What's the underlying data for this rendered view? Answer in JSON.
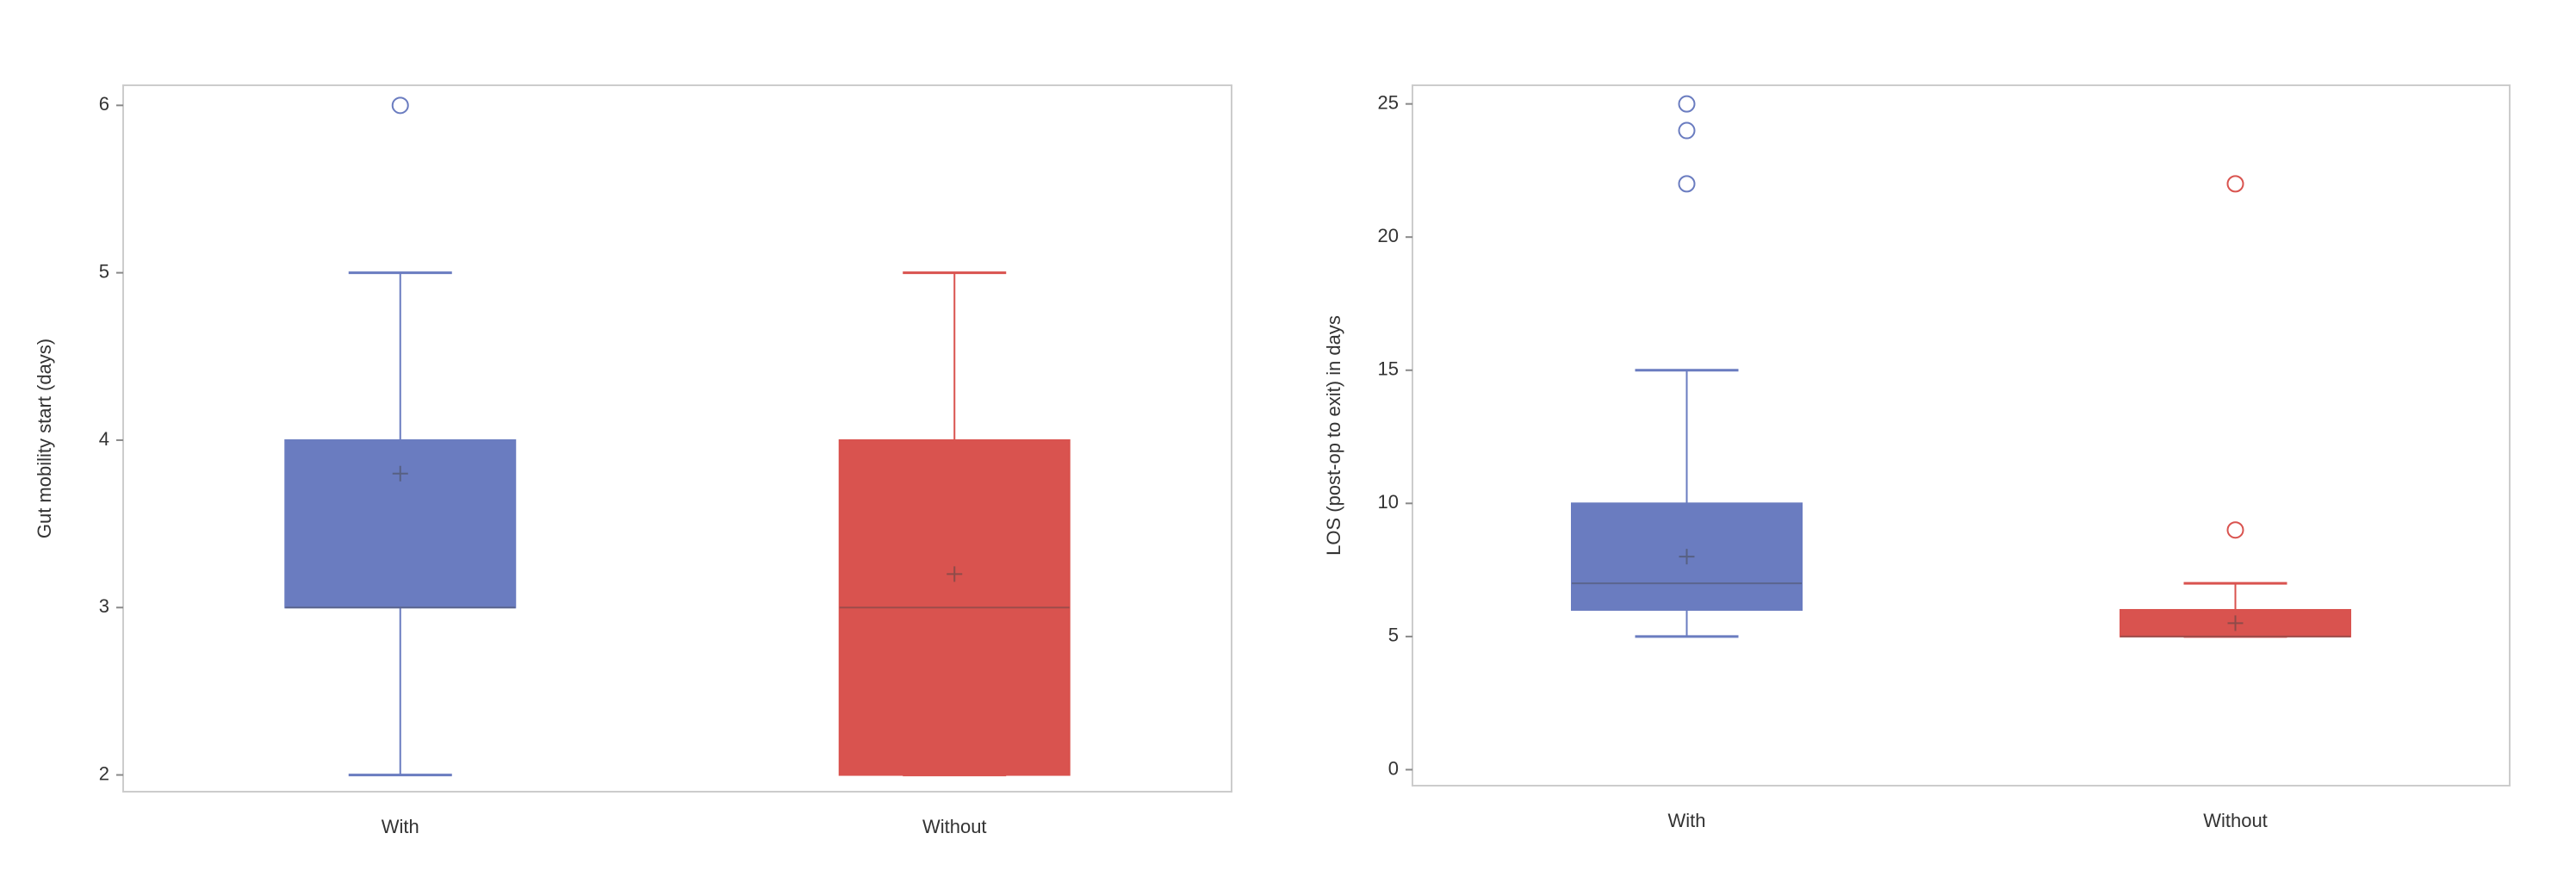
{
  "chart_data": [
    {
      "type": "box",
      "y_label": "Gut mobility start (days)",
      "categories": [
        "With",
        "Without"
      ],
      "series": [
        {
          "name": "With",
          "color": "#6a7cc0",
          "whisker_low": 2,
          "q1": 3,
          "median": 3,
          "q3": 4,
          "whisker_high": 5,
          "mean": 3.8,
          "outliers": [
            6
          ]
        },
        {
          "name": "Without",
          "color": "#d9534f",
          "whisker_low": 2,
          "q1": 2,
          "median": 3,
          "q3": 4,
          "whisker_high": 5,
          "mean": 3.2,
          "outliers": []
        }
      ],
      "ylim": [
        1.9,
        6.12
      ],
      "yticks": [
        2,
        3,
        4,
        5,
        6
      ]
    },
    {
      "type": "box",
      "y_label": "LOS (post-op to exit) in days",
      "categories": [
        "With",
        "Without"
      ],
      "series": [
        {
          "name": "With",
          "color": "#6a7cc0",
          "whisker_low": 5,
          "q1": 6,
          "median": 7,
          "q3": 10,
          "whisker_high": 15,
          "mean": 8,
          "outliers": [
            22,
            24,
            25
          ]
        },
        {
          "name": "Without",
          "color": "#d9534f",
          "whisker_low": 5,
          "q1": 5,
          "median": 5,
          "q3": 6,
          "whisker_high": 7,
          "mean": 5.5,
          "outliers": [
            9,
            22
          ]
        }
      ],
      "ylim": [
        -0.6,
        25.7
      ],
      "yticks": [
        0,
        5,
        10,
        15,
        20,
        25
      ]
    }
  ]
}
